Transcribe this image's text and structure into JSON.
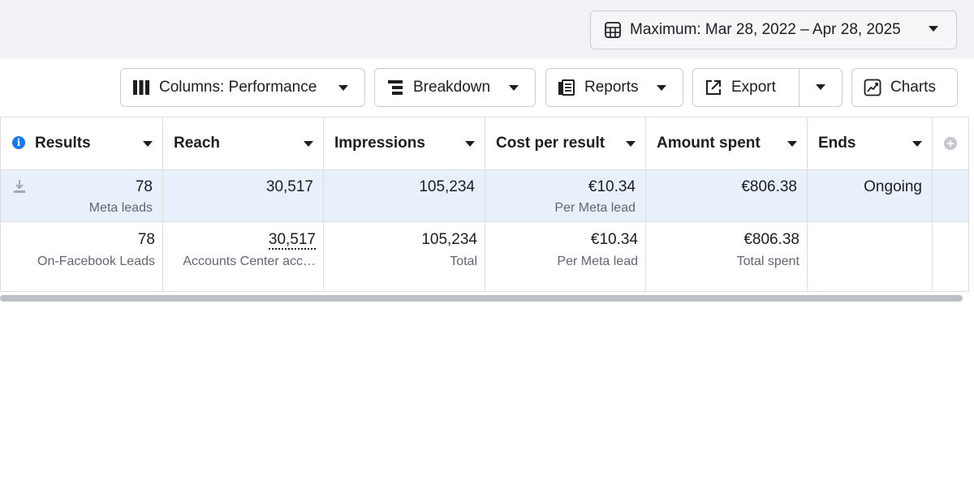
{
  "date_range": {
    "label": "Maximum: Mar 28, 2022 – Apr 28, 2025"
  },
  "toolbar": {
    "columns_label": "Columns: Performance",
    "breakdown_label": "Breakdown",
    "reports_label": "Reports",
    "export_label": "Export",
    "charts_label": "Charts"
  },
  "table": {
    "headers": [
      "Results",
      "Reach",
      "Impressions",
      "Cost per result",
      "Amount spent",
      "Ends"
    ],
    "row": {
      "results": "78",
      "results_sub": "Meta leads",
      "reach": "30,517",
      "impressions": "105,234",
      "cost": "€10.34",
      "cost_sub": "Per Meta lead",
      "spent": "€806.38",
      "ends": "Ongoing"
    },
    "total": {
      "results": "78",
      "results_sub": "On-Facebook Leads",
      "reach": "30,517",
      "reach_sub": "Accounts Center acc…",
      "impressions": "105,234",
      "impressions_sub": "Total",
      "cost": "€10.34",
      "cost_sub": "Per Meta lead",
      "spent": "€806.38",
      "spent_sub": "Total spent"
    }
  },
  "icons": [
    "calendar-icon",
    "columns-icon",
    "breakdown-icon",
    "reports-icon",
    "export-icon",
    "charts-icon",
    "info-icon",
    "download-icon",
    "add-column-icon"
  ],
  "colors": {
    "selected_row": "#e7f0fb",
    "accent": "#1877f2",
    "topbar": "#f0f2f5"
  }
}
